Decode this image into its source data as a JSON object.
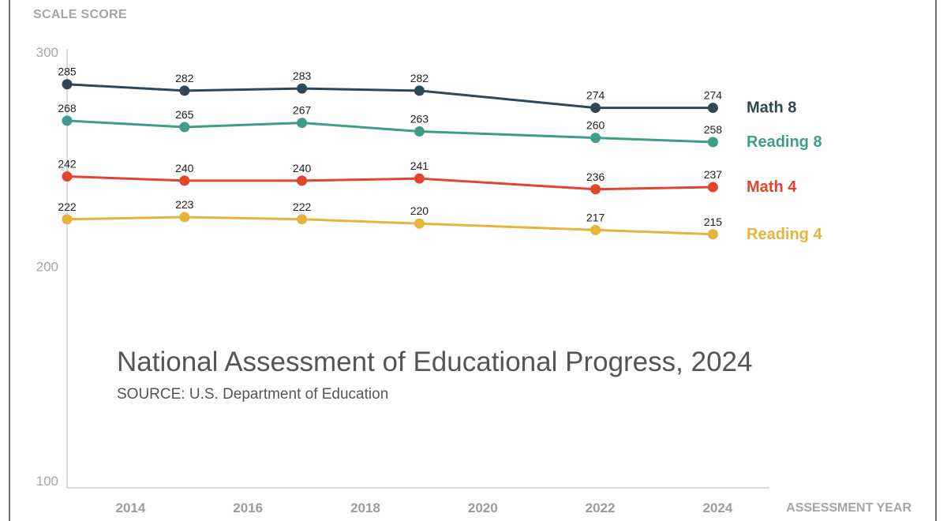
{
  "chart_data": {
    "type": "line",
    "ylabel": "SCALE SCORE",
    "xlabel": "ASSESSMENT YEAR",
    "title": "National Assessment of Educational Progress, 2024",
    "source": "SOURCE: U.S. Department of Education",
    "ylim": [
      100,
      300
    ],
    "y_ticks": [
      300,
      200,
      100
    ],
    "x_ticks": [
      2014,
      2016,
      2018,
      2020,
      2022,
      2024
    ],
    "grid": false,
    "legend": "right-end labels",
    "series": [
      {
        "name": "Math 8",
        "color": "#2f4858",
        "points": [
          {
            "x": 2013,
            "y": 285
          },
          {
            "x": 2015,
            "y": 282
          },
          {
            "x": 2017,
            "y": 283
          },
          {
            "x": 2019,
            "y": 282
          },
          {
            "x": 2022,
            "y": 274
          },
          {
            "x": 2024,
            "y": 274
          }
        ]
      },
      {
        "name": "Reading 8",
        "color": "#3f9d8a",
        "points": [
          {
            "x": 2013,
            "y": 268
          },
          {
            "x": 2015,
            "y": 265
          },
          {
            "x": 2017,
            "y": 267
          },
          {
            "x": 2019,
            "y": 263
          },
          {
            "x": 2022,
            "y": 260
          },
          {
            "x": 2024,
            "y": 258
          }
        ]
      },
      {
        "name": "Math 4",
        "color": "#e1452b",
        "points": [
          {
            "x": 2013,
            "y": 242
          },
          {
            "x": 2015,
            "y": 240
          },
          {
            "x": 2017,
            "y": 240
          },
          {
            "x": 2019,
            "y": 241
          },
          {
            "x": 2022,
            "y": 236
          },
          {
            "x": 2024,
            "y": 237
          }
        ]
      },
      {
        "name": "Reading 4",
        "color": "#e6b43c",
        "points": [
          {
            "x": 2013,
            "y": 222
          },
          {
            "x": 2015,
            "y": 223
          },
          {
            "x": 2017,
            "y": 222
          },
          {
            "x": 2019,
            "y": 220
          },
          {
            "x": 2022,
            "y": 217
          },
          {
            "x": 2024,
            "y": 215
          }
        ]
      }
    ]
  }
}
